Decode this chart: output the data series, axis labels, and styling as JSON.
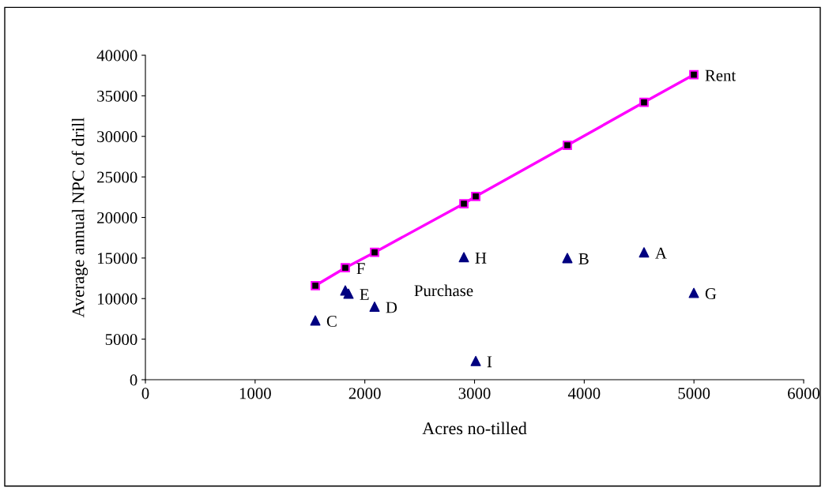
{
  "chart_data": {
    "type": "scatter",
    "xlabel": "Acres no-tilled",
    "ylabel": "Average annual NPC of drill",
    "xlim": [
      0,
      6000
    ],
    "xticks": [
      0,
      1000,
      2000,
      3000,
      4000,
      5000,
      6000
    ],
    "ylim": [
      0,
      40000
    ],
    "yticks": [
      0,
      5000,
      10000,
      15000,
      20000,
      25000,
      30000,
      35000,
      40000
    ],
    "grid": false,
    "legend": false,
    "series": [
      {
        "type": "line",
        "marker": "square",
        "color": "#ff00ff",
        "x": [
          1549,
          1822,
          2089,
          2903,
          3011,
          3846,
          4545,
          4999
        ],
        "values": [
          11600,
          13800,
          15700,
          21700,
          22600,
          28900,
          34200,
          37600
        ]
      },
      {
        "marker": "triangle",
        "color": "#000080",
        "x": [
          1549,
          1822,
          1851,
          2089,
          2903,
          3011,
          3846,
          4545,
          4999
        ],
        "values": [
          7300,
          11000,
          10600,
          9000,
          15100,
          2300,
          15000,
          15700,
          10700
        ]
      }
    ],
    "annotations": [
      {
        "text": "Rent",
        "x": 4999,
        "y": 37600
      },
      "Purchase",
      {
        "text": "F",
        "x": 1822,
        "y": 13800
      },
      {
        "text": "E",
        "x": 1851,
        "y": 10600
      },
      {
        "text": "C",
        "x": 1549,
        "y": 7300
      },
      {
        "text": "D",
        "x": 2089,
        "y": 9000
      },
      {
        "text": "H",
        "x": 2903,
        "y": 15100
      },
      {
        "text": "I",
        "x": 3011,
        "y": 2300
      },
      {
        "text": "B",
        "x": 3846,
        "y": 15000
      },
      {
        "text": "A",
        "x": 4545,
        "y": 15700
      },
      {
        "text": "G",
        "x": 4999,
        "y": 10700
      }
    ]
  }
}
